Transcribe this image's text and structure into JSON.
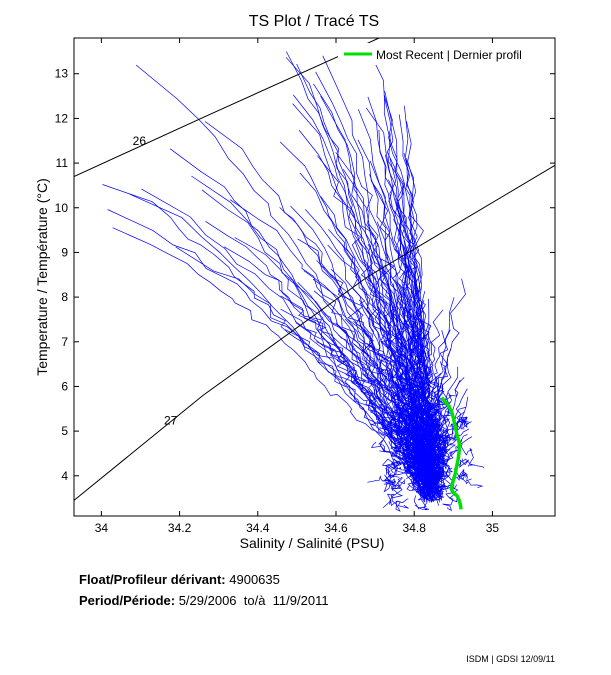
{
  "chart_data": {
    "type": "line",
    "title": "TS Plot / Tracé TS",
    "xlabel": "Salinity / Salinité (PSU)",
    "ylabel": "Temperature / Température (°C)",
    "xlim": [
      33.93,
      35.16
    ],
    "ylim": [
      3.1,
      13.8
    ],
    "xticks": [
      34,
      34.2,
      34.4,
      34.6,
      34.8,
      35
    ],
    "yticks": [
      4,
      5,
      6,
      7,
      8,
      9,
      10,
      11,
      12,
      13
    ],
    "grid": false,
    "legend": {
      "position": "top-right",
      "entries": [
        "Most Recent | Dernier profil"
      ]
    },
    "density_contours": [
      {
        "label": "26",
        "points": [
          [
            33.93,
            10.7
          ],
          [
            34.28,
            12.1
          ],
          [
            34.66,
            13.6
          ],
          [
            34.71,
            13.8
          ]
        ]
      },
      {
        "label": "27",
        "points": [
          [
            33.93,
            3.45
          ],
          [
            34.26,
            5.8
          ],
          [
            34.68,
            8.45
          ],
          [
            35.16,
            10.95
          ]
        ]
      }
    ],
    "series": [
      {
        "name": "Most Recent | Dernier profil",
        "color": "#00e000",
        "x": [
          34.87,
          34.885,
          34.895,
          34.9,
          34.905,
          34.91,
          34.915,
          34.915,
          34.912,
          34.908,
          34.905,
          34.9,
          34.897,
          34.895,
          34.9,
          34.91,
          34.915,
          34.918,
          34.92
        ],
        "y": [
          5.75,
          5.6,
          5.45,
          5.3,
          5.1,
          4.9,
          4.75,
          4.55,
          4.35,
          4.2,
          4.05,
          3.9,
          3.8,
          3.7,
          3.62,
          3.55,
          3.45,
          3.35,
          3.25
        ]
      }
    ],
    "history_color": "#0000ff"
  },
  "float_info": {
    "float_label": "Float/Profileur dérivant:",
    "float_id": "4900635",
    "period_label": "Period/Période:",
    "period_value": "5/29/2006  to/à  11/9/2011"
  },
  "footer": "ISDM | GDSI  12/09/11"
}
